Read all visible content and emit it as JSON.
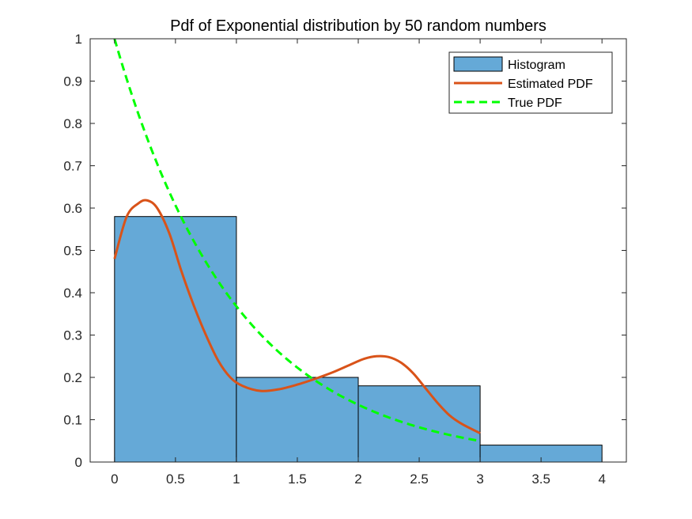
{
  "chart_data": {
    "type": "bar",
    "title": "Pdf of Exponential distribution by 50 random numbers",
    "xlabel": "",
    "ylabel": "",
    "xlim": [
      -0.2,
      4.2
    ],
    "ylim": [
      0,
      1
    ],
    "xticks": [
      "0",
      "0.5",
      "1",
      "1.5",
      "2",
      "2.5",
      "3",
      "3.5",
      "4"
    ],
    "yticks": [
      "0",
      "0.1",
      "0.2",
      "0.3",
      "0.4",
      "0.5",
      "0.6",
      "0.7",
      "0.8",
      "0.9",
      "1"
    ],
    "grid": false,
    "legend_position": "top-right",
    "colors": {
      "histogram_fill": "#65a9d7",
      "estimated_pdf": "#d95319",
      "true_pdf": "#00ff00"
    },
    "histogram": {
      "name": "Histogram",
      "bins": [
        {
          "start": 0,
          "end": 1,
          "value": 0.58
        },
        {
          "start": 1,
          "end": 2,
          "value": 0.2
        },
        {
          "start": 2,
          "end": 3,
          "value": 0.18
        },
        {
          "start": 3,
          "end": 4,
          "value": 0.04
        }
      ]
    },
    "series": [
      {
        "name": "Estimated PDF",
        "style": "solid",
        "x": [
          0,
          0.1,
          0.2,
          0.27,
          0.35,
          0.45,
          0.55,
          0.65,
          0.75,
          0.85,
          0.95,
          1.05,
          1.2,
          1.35,
          1.5,
          1.65,
          1.8,
          1.95,
          2.05,
          2.15,
          2.25,
          2.35,
          2.45,
          2.55,
          2.65,
          2.75,
          2.85,
          3.0
        ],
        "y": [
          0.48,
          0.58,
          0.612,
          0.618,
          0.6,
          0.54,
          0.45,
          0.37,
          0.3,
          0.24,
          0.2,
          0.18,
          0.168,
          0.172,
          0.183,
          0.197,
          0.213,
          0.232,
          0.244,
          0.25,
          0.248,
          0.235,
          0.21,
          0.175,
          0.14,
          0.11,
          0.09,
          0.068
        ]
      },
      {
        "name": "True PDF",
        "style": "dashed",
        "function": "exp(-x)",
        "domain": [
          0,
          3
        ]
      }
    ]
  }
}
